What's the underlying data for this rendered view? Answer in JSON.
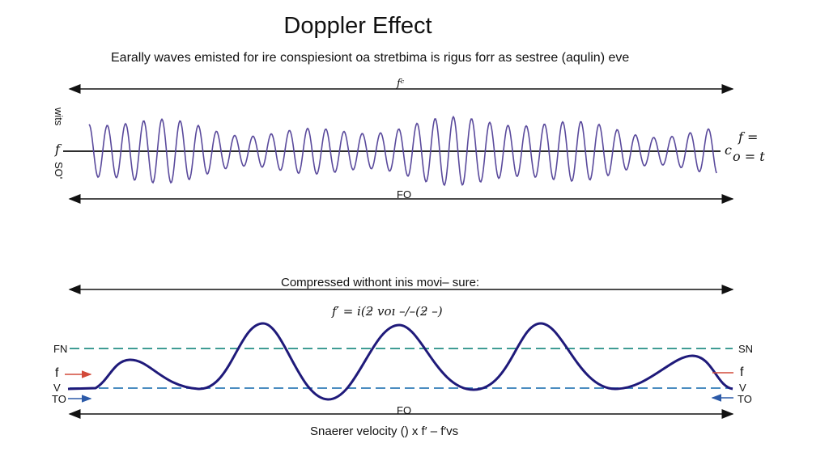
{
  "title": "Doppler Effect",
  "subtitle": "Earally waves emisted for ire conspiesiont oa stretbima is rigus forr as sestree (aqulin) eve",
  "top_panel": {
    "top_arrow_label": "fᶜ",
    "bottom_arrow_label": "FO",
    "left_labels": [
      "wits",
      "f",
      "SO'"
    ],
    "right_labels": [
      "c",
      "f =",
      "o = t"
    ]
  },
  "bottom_panel": {
    "heading": "Compressed withont inis movi– sure:",
    "formula": "f′ = i(ƻ voı –/–(ƻ –)",
    "left_labels": [
      "FN",
      "f",
      "V",
      "TO"
    ],
    "right_labels": [
      "SN",
      "f",
      "V",
      "TO"
    ],
    "bottom_arrow_label": "FO",
    "caption": "Snaerer velocity () x f′ – f′vs"
  },
  "colors": {
    "wave": "#5a4a9c",
    "curve": "#1f1a7a",
    "teal_dash": "#3f9c94",
    "blue_dash": "#4a8cc0",
    "red_arrow": "#d24a3a",
    "blue_arrow": "#2c5aa8"
  }
}
